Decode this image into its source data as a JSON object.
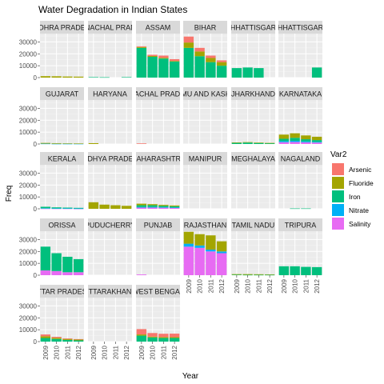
{
  "chart_data": {
    "type": "bar",
    "title": "Water Degradation in Indian States",
    "xlabel": "Year",
    "ylabel": "Freq",
    "x": [
      "2009",
      "2010",
      "2011",
      "2012"
    ],
    "y_ticks": [
      0,
      10000,
      20000,
      30000
    ],
    "ylim": [
      0,
      37000
    ],
    "grid": true,
    "legend": {
      "title": "Var2",
      "position": "right",
      "entries": [
        "Arsenic",
        "Fluoride",
        "Iron",
        "Nitrate",
        "Salinity"
      ]
    },
    "colors": {
      "Arsenic": "#F8766D",
      "Fluoride": "#A3A500",
      "Iron": "#00BF7D",
      "Nitrate": "#00B0F6",
      "Salinity": "#E76BF3"
    },
    "panels": [
      {
        "label": "ANDHRA PRADESH",
        "values": {
          "Arsenic": [
            0,
            0,
            0,
            0
          ],
          "Fluoride": [
            1200,
            1100,
            900,
            800
          ],
          "Iron": [
            0,
            0,
            0,
            0
          ],
          "Nitrate": [
            0,
            0,
            0,
            0
          ],
          "Salinity": [
            0,
            0,
            0,
            0
          ]
        }
      },
      {
        "label": "ARUNACHAL PRADESH",
        "values": {
          "Arsenic": [
            0,
            0,
            0,
            0
          ],
          "Fluoride": [
            0,
            0,
            0,
            0
          ],
          "Iron": [
            400,
            300,
            0,
            400
          ],
          "Nitrate": [
            0,
            0,
            0,
            0
          ],
          "Salinity": [
            0,
            0,
            0,
            0
          ]
        }
      },
      {
        "label": "ASSAM",
        "values": {
          "Arsenic": [
            600,
            1000,
            1800,
            1500
          ],
          "Fluoride": [
            700,
            700,
            700,
            500
          ],
          "Iron": [
            25000,
            17500,
            16000,
            13500
          ],
          "Nitrate": [
            0,
            0,
            0,
            0
          ],
          "Salinity": [
            0,
            0,
            0,
            0
          ]
        }
      },
      {
        "label": "BIHAR",
        "values": {
          "Arsenic": [
            5000,
            3000,
            2000,
            1500
          ],
          "Fluoride": [
            4500,
            4000,
            3500,
            3000
          ],
          "Iron": [
            25000,
            18000,
            13000,
            10000
          ],
          "Nitrate": [
            0,
            0,
            0,
            0
          ],
          "Salinity": [
            0,
            0,
            0,
            0
          ]
        }
      },
      {
        "label": "CHHATTISGARH",
        "values": {
          "Arsenic": [
            0,
            0,
            0,
            0
          ],
          "Fluoride": [
            0,
            0,
            0,
            0
          ],
          "Iron": [
            8000,
            8500,
            8000,
            0
          ],
          "Nitrate": [
            0,
            0,
            0,
            0
          ],
          "Salinity": [
            0,
            0,
            0,
            0
          ]
        }
      },
      {
        "label": "CHHATTISGARH",
        "values": {
          "Arsenic": [
            0,
            0,
            0,
            0
          ],
          "Fluoride": [
            0,
            0,
            0,
            0
          ],
          "Iron": [
            0,
            0,
            0,
            8500
          ],
          "Nitrate": [
            0,
            0,
            0,
            0
          ],
          "Salinity": [
            0,
            0,
            0,
            0
          ]
        }
      },
      {
        "label": "GUJARAT",
        "values": {
          "Arsenic": [
            0,
            0,
            0,
            0
          ],
          "Fluoride": [
            600,
            500,
            400,
            300
          ],
          "Iron": [
            0,
            0,
            0,
            0
          ],
          "Nitrate": [
            300,
            200,
            200,
            200
          ],
          "Salinity": [
            0,
            0,
            0,
            0
          ]
        }
      },
      {
        "label": "HARYANA",
        "values": {
          "Arsenic": [
            0,
            0,
            0,
            0
          ],
          "Fluoride": [
            700,
            0,
            0,
            0
          ],
          "Iron": [
            0,
            0,
            0,
            0
          ],
          "Nitrate": [
            0,
            0,
            0,
            0
          ],
          "Salinity": [
            0,
            0,
            0,
            0
          ]
        }
      },
      {
        "label": "HIMACHAL PRADESH",
        "values": {
          "Arsenic": [
            500,
            0,
            0,
            0
          ],
          "Fluoride": [
            0,
            0,
            0,
            0
          ],
          "Iron": [
            0,
            0,
            0,
            0
          ],
          "Nitrate": [
            0,
            0,
            0,
            0
          ],
          "Salinity": [
            0,
            0,
            0,
            0
          ]
        }
      },
      {
        "label": "JAMMU AND KASHMIR",
        "values": {
          "Arsenic": [
            0,
            0,
            0,
            0
          ],
          "Fluoride": [
            0,
            0,
            0,
            0
          ],
          "Iron": [
            0,
            0,
            0,
            0
          ],
          "Nitrate": [
            0,
            0,
            0,
            0
          ],
          "Salinity": [
            0,
            0,
            0,
            0
          ]
        }
      },
      {
        "label": "JHARKHAND",
        "values": {
          "Arsenic": [
            0,
            0,
            0,
            0
          ],
          "Fluoride": [
            300,
            400,
            300,
            200
          ],
          "Iron": [
            1000,
            1200,
            900,
            700
          ],
          "Nitrate": [
            0,
            0,
            0,
            0
          ],
          "Salinity": [
            0,
            0,
            0,
            0
          ]
        }
      },
      {
        "label": "KARNATAKA",
        "values": {
          "Arsenic": [
            0,
            0,
            0,
            0
          ],
          "Fluoride": [
            3500,
            3800,
            3200,
            2800
          ],
          "Iron": [
            2000,
            2500,
            1800,
            1500
          ],
          "Nitrate": [
            900,
            1000,
            800,
            600
          ],
          "Salinity": [
            1500,
            1700,
            1400,
            1200
          ]
        }
      },
      {
        "label": "KERALA",
        "values": {
          "Arsenic": [
            0,
            0,
            0,
            0
          ],
          "Fluoride": [
            0,
            0,
            0,
            0
          ],
          "Iron": [
            1200,
            800,
            600,
            500
          ],
          "Nitrate": [
            300,
            200,
            200,
            200
          ],
          "Salinity": [
            200,
            200,
            200,
            100
          ]
        }
      },
      {
        "label": "MADHYA PRADESH",
        "values": {
          "Arsenic": [
            0,
            0,
            0,
            0
          ],
          "Fluoride": [
            5500,
            3500,
            3000,
            2500
          ],
          "Iron": [
            0,
            0,
            0,
            0
          ],
          "Nitrate": [
            0,
            0,
            0,
            0
          ],
          "Salinity": [
            0,
            0,
            0,
            0
          ]
        }
      },
      {
        "label": "MAHARASHTRA",
        "values": {
          "Arsenic": [
            0,
            0,
            0,
            0
          ],
          "Fluoride": [
            1300,
            900,
            800,
            700
          ],
          "Iron": [
            1500,
            1500,
            1200,
            1000
          ],
          "Nitrate": [
            500,
            500,
            400,
            300
          ],
          "Salinity": [
            1000,
            1000,
            900,
            800
          ]
        }
      },
      {
        "label": "MANIPUR",
        "values": {
          "Arsenic": [
            0,
            0,
            0,
            0
          ],
          "Fluoride": [
            0,
            0,
            0,
            0
          ],
          "Iron": [
            0,
            0,
            0,
            0
          ],
          "Nitrate": [
            0,
            0,
            0,
            0
          ],
          "Salinity": [
            0,
            0,
            0,
            0
          ]
        }
      },
      {
        "label": "MEGHALAYA",
        "values": {
          "Arsenic": [
            0,
            0,
            0,
            0
          ],
          "Fluoride": [
            0,
            0,
            0,
            0
          ],
          "Iron": [
            0,
            0,
            0,
            0
          ],
          "Nitrate": [
            0,
            0,
            0,
            0
          ],
          "Salinity": [
            0,
            0,
            0,
            0
          ]
        }
      },
      {
        "label": "NAGALAND",
        "values": {
          "Arsenic": [
            0,
            0,
            0,
            0
          ],
          "Fluoride": [
            0,
            0,
            0,
            0
          ],
          "Iron": [
            0,
            300,
            300,
            0
          ],
          "Nitrate": [
            0,
            0,
            0,
            0
          ],
          "Salinity": [
            0,
            0,
            0,
            0
          ]
        }
      },
      {
        "label": "ORISSA",
        "values": {
          "Arsenic": [
            0,
            0,
            0,
            0
          ],
          "Fluoride": [
            0,
            0,
            0,
            0
          ],
          "Iron": [
            20000,
            15000,
            13000,
            11000
          ],
          "Nitrate": [
            0,
            0,
            0,
            0
          ],
          "Salinity": [
            4000,
            3500,
            2500,
            2500
          ]
        }
      },
      {
        "label": "PUDUCHERRY",
        "values": {
          "Arsenic": [
            0,
            0,
            0,
            0
          ],
          "Fluoride": [
            0,
            0,
            0,
            0
          ],
          "Iron": [
            0,
            0,
            0,
            0
          ],
          "Nitrate": [
            0,
            0,
            0,
            0
          ],
          "Salinity": [
            0,
            0,
            0,
            0
          ]
        }
      },
      {
        "label": "PUNJAB",
        "values": {
          "Arsenic": [
            0,
            0,
            0,
            0
          ],
          "Fluoride": [
            0,
            0,
            0,
            0
          ],
          "Iron": [
            0,
            0,
            0,
            0
          ],
          "Nitrate": [
            0,
            0,
            0,
            0
          ],
          "Salinity": [
            600,
            0,
            0,
            0
          ]
        }
      },
      {
        "label": "RAJASTHAN",
        "values": {
          "Arsenic": [
            0,
            0,
            0,
            0
          ],
          "Fluoride": [
            10000,
            9500,
            12000,
            8500
          ],
          "Iron": [
            0,
            0,
            0,
            0
          ],
          "Nitrate": [
            2500,
            2000,
            1500,
            1500
          ],
          "Salinity": [
            24000,
            23000,
            20000,
            18500
          ]
        }
      },
      {
        "label": "TAMIL NADU",
        "values": {
          "Arsenic": [
            0,
            0,
            0,
            0
          ],
          "Fluoride": [
            500,
            600,
            500,
            400
          ],
          "Iron": [
            400,
            300,
            300,
            300
          ],
          "Nitrate": [
            0,
            0,
            0,
            0
          ],
          "Salinity": [
            0,
            0,
            0,
            0
          ]
        }
      },
      {
        "label": "TRIPURA",
        "values": {
          "Arsenic": [
            0,
            0,
            0,
            0
          ],
          "Fluoride": [
            0,
            0,
            0,
            0
          ],
          "Iron": [
            7500,
            7500,
            7000,
            6800
          ],
          "Nitrate": [
            0,
            0,
            0,
            0
          ],
          "Salinity": [
            0,
            0,
            0,
            0
          ]
        }
      },
      {
        "label": "UTTAR PRADESH",
        "values": {
          "Arsenic": [
            1500,
            800,
            500,
            400
          ],
          "Fluoride": [
            1500,
            1000,
            800,
            700
          ],
          "Iron": [
            3000,
            2200,
            1400,
            1000
          ],
          "Nitrate": [
            0,
            0,
            0,
            0
          ],
          "Salinity": [
            0,
            0,
            0,
            0
          ]
        }
      },
      {
        "label": "UTTARAKHAND",
        "values": {
          "Arsenic": [
            0,
            0,
            0,
            0
          ],
          "Fluoride": [
            0,
            0,
            0,
            0
          ],
          "Iron": [
            0,
            0,
            0,
            0
          ],
          "Nitrate": [
            0,
            0,
            0,
            0
          ],
          "Salinity": [
            0,
            0,
            0,
            0
          ]
        }
      },
      {
        "label": "WEST BENGAL",
        "values": {
          "Arsenic": [
            4500,
            3000,
            2800,
            3000
          ],
          "Fluoride": [
            1000,
            700,
            800,
            700
          ],
          "Iron": [
            5000,
            3500,
            3000,
            3000
          ],
          "Nitrate": [
            0,
            0,
            0,
            0
          ],
          "Salinity": [
            0,
            0,
            0,
            0
          ]
        }
      }
    ]
  }
}
